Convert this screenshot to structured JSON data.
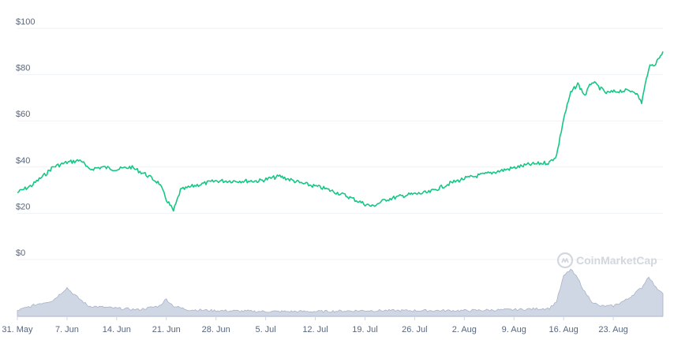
{
  "watermark": "CoinMarketCap",
  "icon": "coinmarketcap-logo-icon",
  "colors": {
    "line": "#16c784",
    "volume_fill": "#cfd6e4",
    "volume_stroke": "#a9b3c6",
    "grid": "#eff2f5",
    "text": "#58667e"
  },
  "chart_data": [
    {
      "type": "line",
      "title": "",
      "xlabel": "",
      "ylabel": "",
      "x_ticks": [
        "31. May",
        "7. Jun",
        "14. Jun",
        "21. Jun",
        "28. Jun",
        "5. Jul",
        "12. Jul",
        "19. Jul",
        "26. Jul",
        "2. Aug",
        "9. Aug",
        "16. Aug",
        "23. Aug"
      ],
      "y_ticks": [
        "$0",
        "$20",
        "$40",
        "$60",
        "$80",
        "$100"
      ],
      "y_tick_values": [
        0,
        20,
        40,
        60,
        80,
        100
      ],
      "ylim": [
        0,
        100
      ],
      "x_range": [
        "2021-05-31",
        "2021-08-30"
      ],
      "grid": true,
      "series": [
        {
          "x": [
            "2021-05-31",
            "2021-06-02",
            "2021-06-04",
            "2021-06-05",
            "2021-06-07",
            "2021-06-09",
            "2021-06-10",
            "2021-06-12",
            "2021-06-14",
            "2021-06-16",
            "2021-06-18",
            "2021-06-20",
            "2021-06-21",
            "2021-06-22",
            "2021-06-23",
            "2021-06-25",
            "2021-06-28",
            "2021-07-01",
            "2021-07-04",
            "2021-07-07",
            "2021-07-08",
            "2021-07-10",
            "2021-07-13",
            "2021-07-16",
            "2021-07-19",
            "2021-07-20",
            "2021-07-22",
            "2021-07-25",
            "2021-07-28",
            "2021-07-31",
            "2021-08-02",
            "2021-08-05",
            "2021-08-08",
            "2021-08-11",
            "2021-08-14",
            "2021-08-15",
            "2021-08-16",
            "2021-08-17",
            "2021-08-18",
            "2021-08-19",
            "2021-08-20",
            "2021-08-22",
            "2021-08-24",
            "2021-08-26",
            "2021-08-27",
            "2021-08-28",
            "2021-08-29",
            "2021-08-30"
          ],
          "values": [
            29,
            32,
            37,
            40,
            42,
            43,
            39,
            40,
            39,
            40,
            37,
            33,
            26,
            21,
            30,
            32,
            34,
            34,
            34,
            36,
            35,
            33,
            31,
            28,
            24,
            23,
            26,
            28,
            29,
            33,
            35,
            37,
            39,
            41,
            42,
            45,
            61,
            72,
            76,
            71,
            77,
            72,
            73,
            73,
            68,
            83,
            85,
            90
          ]
        }
      ]
    },
    {
      "type": "area",
      "title": "",
      "x_range": [
        "2021-05-31",
        "2021-08-30"
      ],
      "series": [
        {
          "x": [
            "2021-05-31",
            "2021-06-03",
            "2021-06-05",
            "2021-06-07",
            "2021-06-08",
            "2021-06-10",
            "2021-06-14",
            "2021-06-17",
            "2021-06-20",
            "2021-06-21",
            "2021-06-22",
            "2021-06-24",
            "2021-06-28",
            "2021-07-05",
            "2021-07-12",
            "2021-07-19",
            "2021-07-26",
            "2021-08-02",
            "2021-08-09",
            "2021-08-14",
            "2021-08-15",
            "2021-08-16",
            "2021-08-17",
            "2021-08-18",
            "2021-08-19",
            "2021-08-20",
            "2021-08-21",
            "2021-08-23",
            "2021-08-25",
            "2021-08-27",
            "2021-08-28",
            "2021-08-29",
            "2021-08-30"
          ],
          "values": [
            0.1,
            0.25,
            0.32,
            0.6,
            0.45,
            0.2,
            0.15,
            0.12,
            0.2,
            0.35,
            0.2,
            0.12,
            0.1,
            0.08,
            0.08,
            0.1,
            0.1,
            0.1,
            0.12,
            0.15,
            0.3,
            0.85,
            1.0,
            0.8,
            0.5,
            0.3,
            0.2,
            0.2,
            0.35,
            0.6,
            0.85,
            0.6,
            0.5
          ]
        }
      ]
    }
  ]
}
